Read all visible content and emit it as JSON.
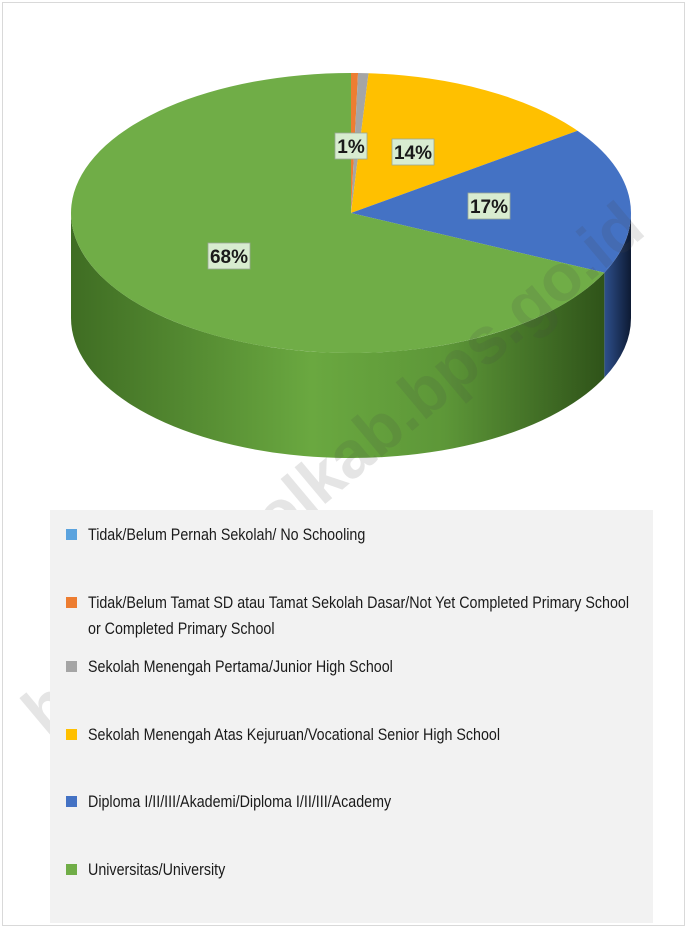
{
  "watermark": "https://bitolkab.bps.go.id",
  "chart_data": {
    "type": "pie",
    "style": "3d",
    "legend_position": "bottom",
    "slices": [
      {
        "name": "Tidak/Belum Pernah Sekolah/ No Schooling",
        "value": 0,
        "label": "",
        "color": "#5ba3de"
      },
      {
        "name": "Tidak/Belum Tamat SD atau Tamat Sekolah Dasar/Not Yet Completed Primary School or Completed Primary School",
        "value": 0.4,
        "label": "",
        "color": "#ed7d31"
      },
      {
        "name": "Sekolah Menengah Pertama/Junior High School",
        "value": 0.6,
        "label": "1%",
        "color": "#a5a5a5"
      },
      {
        "name": "Sekolah Menengah Atas Kejuruan/Vocational Senior High School",
        "value": 14,
        "label": "14%",
        "color": "#ffc000"
      },
      {
        "name": "Diploma I/II/III/Akademi/Diploma I/II/III/Academy",
        "value": 17,
        "label": "17%",
        "color": "#4472c4"
      },
      {
        "name": "Universitas/University",
        "value": 68,
        "label": "68%",
        "color": "#70ad47"
      }
    ]
  }
}
